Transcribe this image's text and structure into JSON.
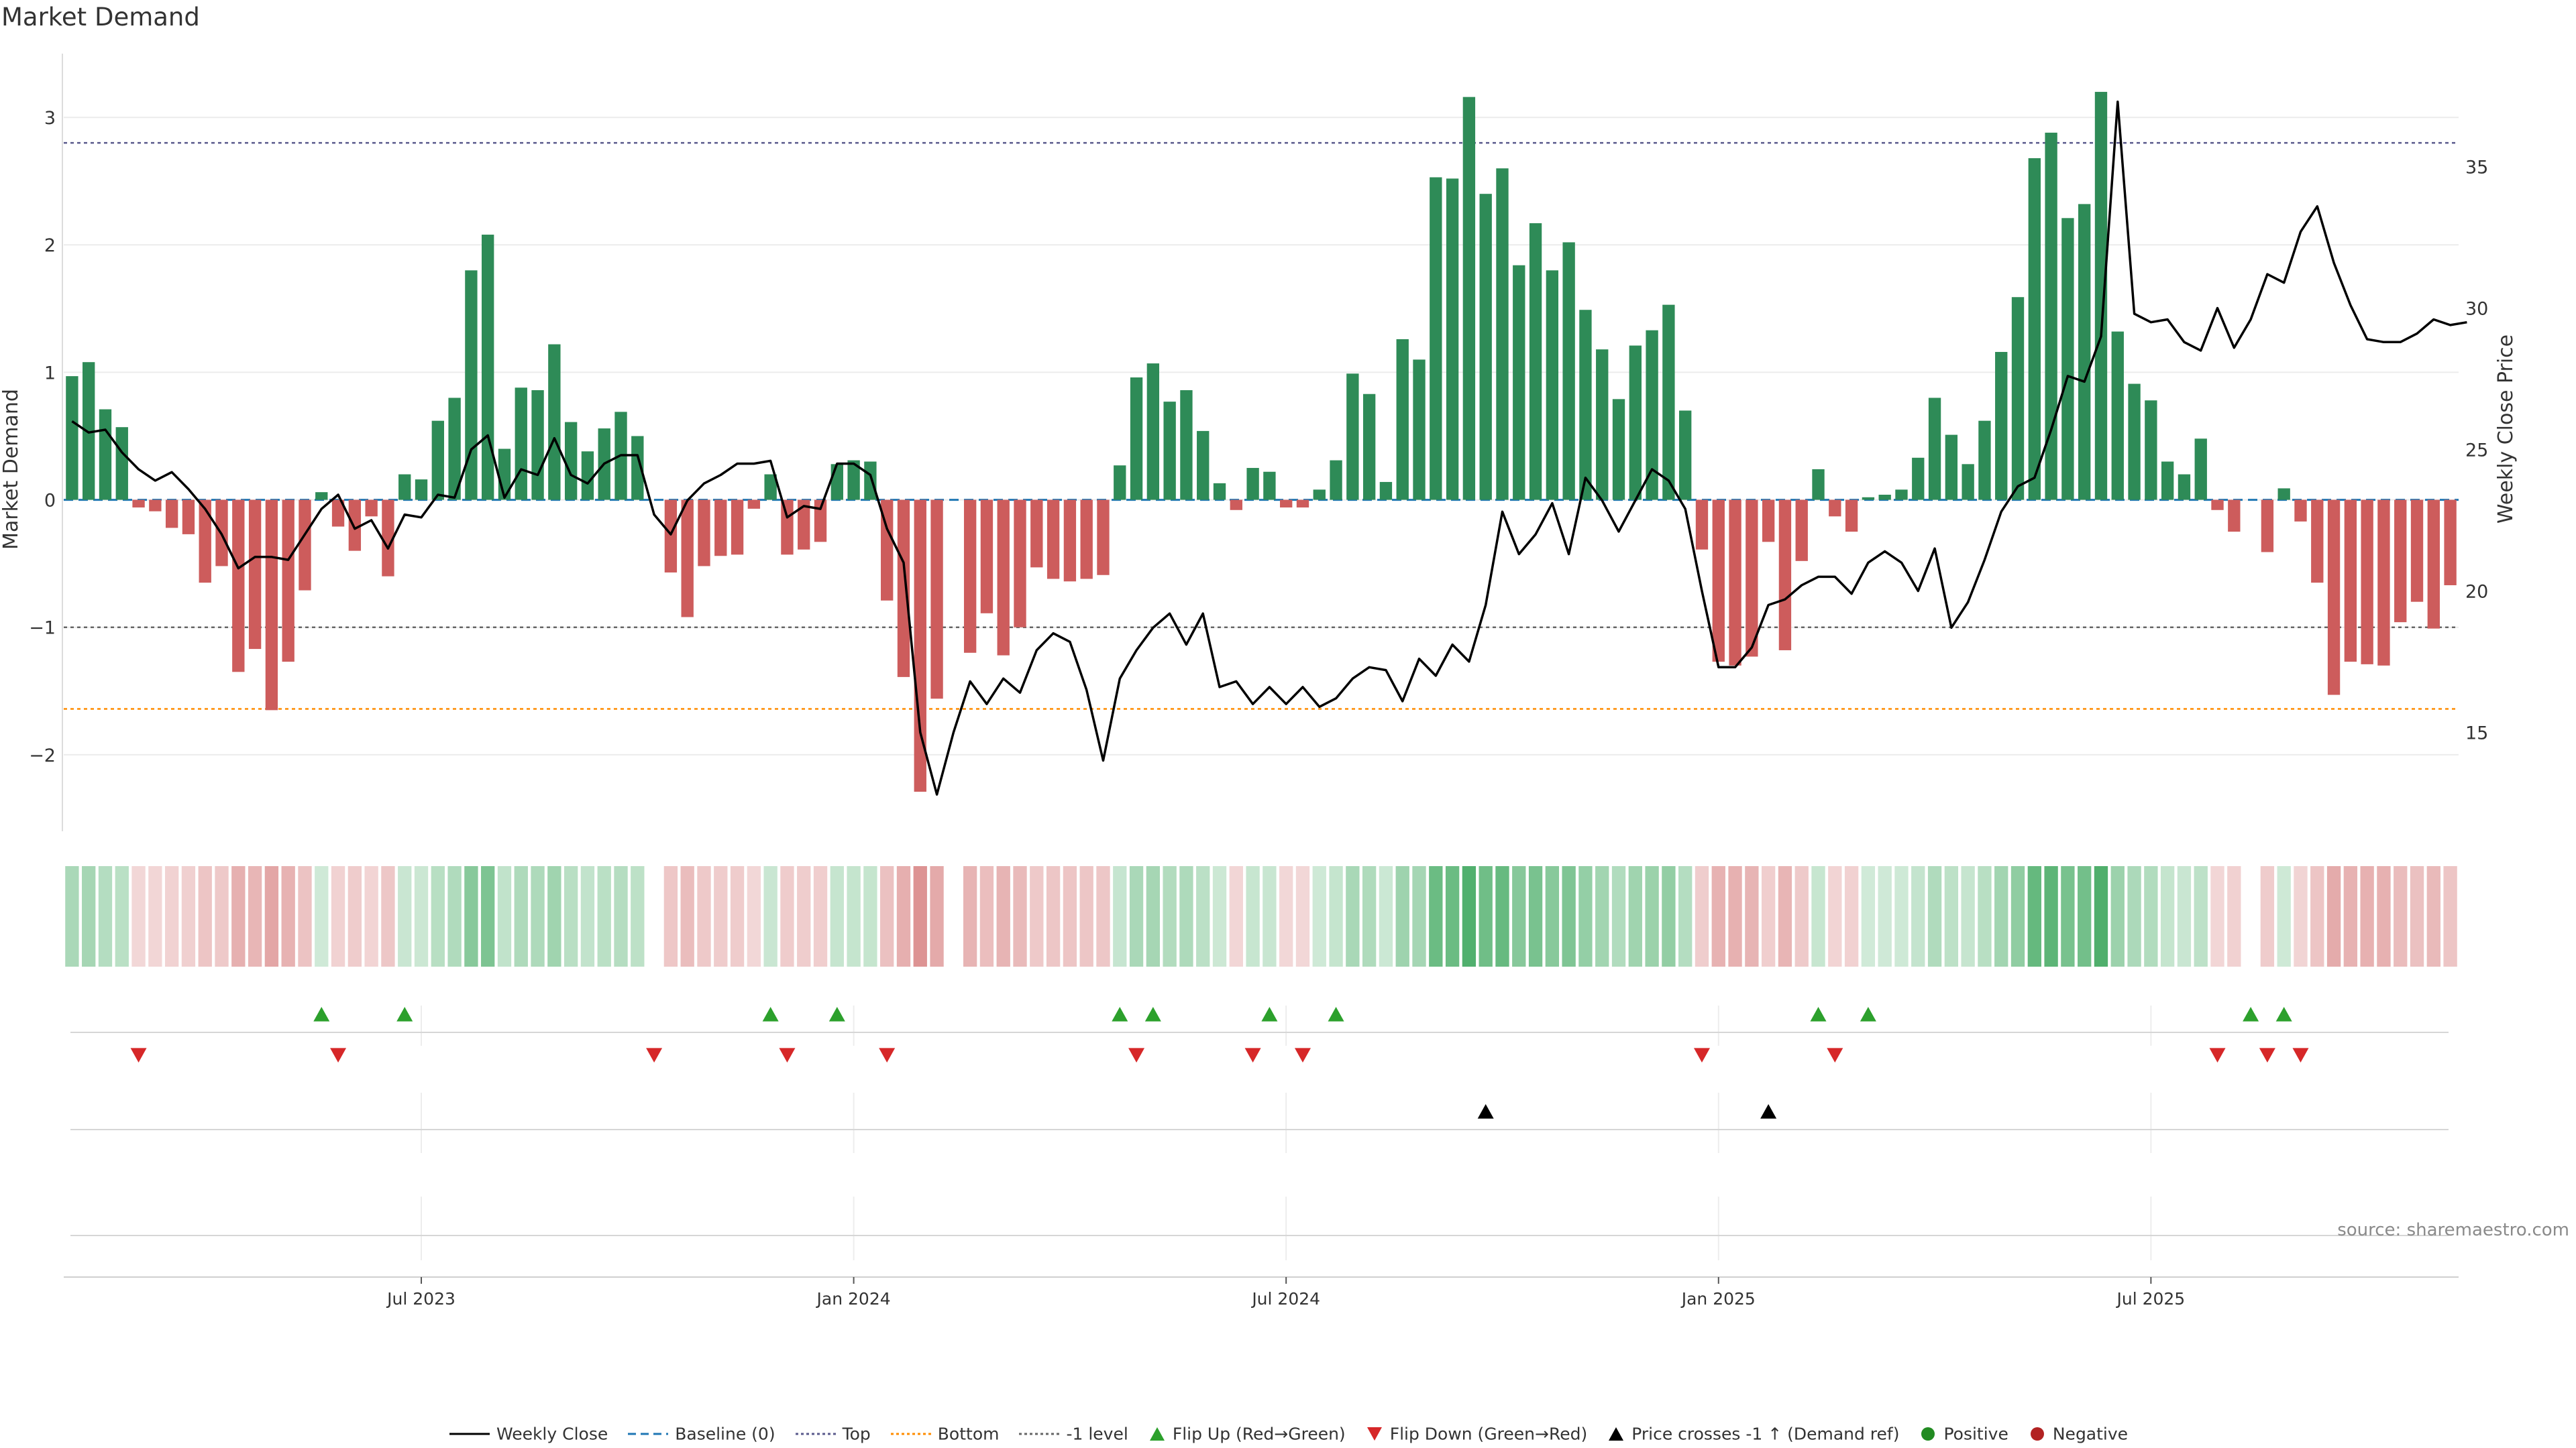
{
  "chart_data": {
    "type": "bar",
    "title": "Market Demand",
    "ylabel_left": "Market Demand",
    "ylabel_right": "Weekly Close Price",
    "ylim_left": [
      -2.6,
      3.5
    ],
    "ylim_right": [
      11.5,
      39.0
    ],
    "yticks_left": [
      -2,
      -1,
      0,
      1,
      2,
      3
    ],
    "yticks_left_labels": [
      "−2",
      "−1",
      "0",
      "1",
      "2",
      "3"
    ],
    "yticks_right": [
      15,
      20,
      25,
      30,
      35
    ],
    "reference_lines": {
      "top": 2.8,
      "bottom": -1.64,
      "minus_one": -1.0
    },
    "x_axis": {
      "start": "2023-02-07",
      "week_count": 144,
      "tick_weeks": [
        21,
        47,
        73,
        99,
        125
      ],
      "tick_labels": [
        "Jul 2023",
        "Jan 2024",
        "Jul 2024",
        "Jan 2025",
        "Jul 2025"
      ]
    },
    "demand": [
      0.97,
      1.08,
      0.71,
      0.57,
      -0.06,
      -0.09,
      -0.22,
      -0.27,
      -0.65,
      -0.52,
      -1.35,
      -1.17,
      -1.65,
      -1.27,
      -0.71,
      0.06,
      -0.21,
      -0.4,
      -0.13,
      -0.6,
      0.2,
      0.16,
      0.62,
      0.8,
      1.8,
      2.08,
      0.4,
      0.88,
      0.86,
      1.22,
      0.61,
      0.38,
      0.56,
      0.69,
      0.5,
      0.0,
      -0.57,
      -0.92,
      -0.52,
      -0.44,
      -0.43,
      -0.07,
      0.2,
      -0.43,
      -0.39,
      -0.33,
      0.28,
      0.31,
      0.3,
      -0.79,
      -1.39,
      -2.29,
      -1.56,
      0.0,
      -1.2,
      -0.89,
      -1.22,
      -1.0,
      -0.53,
      -0.62,
      -0.64,
      -0.62,
      -0.59,
      0.27,
      0.96,
      1.07,
      0.77,
      0.86,
      0.54,
      0.13,
      -0.08,
      0.25,
      0.22,
      -0.06,
      -0.06,
      0.08,
      0.31,
      0.99,
      0.83,
      0.14,
      1.26,
      1.1,
      2.53,
      2.52,
      3.16,
      2.4,
      2.6,
      1.84,
      2.17,
      1.8,
      2.02,
      1.49,
      1.18,
      0.79,
      1.21,
      1.33,
      1.53,
      0.7,
      -0.39,
      -1.27,
      -1.3,
      -1.23,
      -0.33,
      -1.18,
      -0.48,
      0.24,
      -0.13,
      -0.25,
      0.02,
      0.04,
      0.08,
      0.33,
      0.8,
      0.51,
      0.28,
      0.62,
      1.16,
      1.59,
      2.68,
      2.88,
      2.21,
      2.32,
      3.2,
      1.32,
      0.91,
      0.78,
      0.3,
      0.2,
      0.48,
      -0.08,
      -0.25,
      0.0,
      -0.41,
      0.09,
      -0.17,
      -0.65,
      -1.53,
      -1.27,
      -1.29,
      -1.3,
      -0.96,
      -0.8,
      -1.01,
      -0.67
    ],
    "close": [
      26.0,
      25.6,
      25.7,
      24.9,
      24.3,
      23.9,
      24.2,
      23.6,
      22.9,
      22.0,
      20.8,
      21.2,
      21.2,
      21.1,
      22.0,
      22.9,
      23.4,
      22.2,
      22.5,
      21.5,
      22.7,
      22.6,
      23.4,
      23.3,
      25.0,
      25.5,
      23.3,
      24.3,
      24.1,
      25.4,
      24.1,
      23.8,
      24.5,
      24.8,
      24.8,
      22.7,
      22.0,
      23.2,
      23.8,
      24.1,
      24.5,
      24.5,
      24.6,
      22.6,
      23.0,
      22.9,
      24.5,
      24.5,
      24.1,
      22.2,
      21.0,
      15.0,
      12.8,
      15.0,
      16.8,
      16.0,
      16.9,
      16.4,
      17.9,
      18.5,
      18.2,
      16.5,
      14.0,
      16.9,
      17.9,
      18.7,
      19.2,
      18.1,
      19.2,
      16.6,
      16.8,
      16.0,
      16.6,
      16.0,
      16.6,
      15.9,
      16.2,
      16.9,
      17.3,
      17.2,
      16.1,
      17.6,
      17.0,
      18.1,
      17.5,
      19.5,
      22.8,
      21.3,
      22.0,
      23.1,
      21.3,
      24.0,
      23.2,
      22.1,
      23.2,
      24.3,
      23.9,
      22.9,
      20.0,
      17.3,
      17.3,
      18.0,
      19.5,
      19.7,
      20.2,
      20.5,
      20.5,
      19.9,
      21.0,
      21.4,
      21.0,
      20.0,
      21.5,
      18.7,
      19.6,
      21.1,
      22.8,
      23.7,
      24.0,
      25.7,
      27.6,
      27.4,
      29.0,
      37.3,
      29.8,
      29.5,
      29.6,
      28.8,
      28.5,
      30.0,
      28.6,
      29.6,
      31.2,
      30.9,
      32.7,
      33.6,
      31.6,
      30.1,
      28.9,
      28.8,
      28.8,
      29.1,
      29.6,
      29.4,
      29.5
    ],
    "flip_up_weeks": [
      15,
      20,
      42,
      46,
      63,
      65,
      72,
      76,
      105,
      108,
      131,
      133
    ],
    "flip_down_weeks": [
      4,
      16,
      35,
      43,
      49,
      64,
      71,
      74,
      98,
      106,
      129,
      132,
      134
    ],
    "price_cross_weeks": [
      85,
      102
    ],
    "legend": [
      {
        "label": "Weekly Close",
        "icon": "solid-line"
      },
      {
        "label": "Baseline (0)",
        "icon": "dashed-line"
      },
      {
        "label": "Top",
        "icon": "dotted-line"
      },
      {
        "label": "Bottom",
        "icon": "dotted-line"
      },
      {
        "label": "-1 level",
        "icon": "dotted-line"
      },
      {
        "label": "Flip Up (Red→Green)",
        "icon": "triangle-up"
      },
      {
        "label": "Flip Down (Green→Red)",
        "icon": "triangle-down"
      },
      {
        "label": "Price crosses -1 ↑ (Demand ref)",
        "icon": "triangle-up"
      },
      {
        "label": "Positive",
        "icon": "circle"
      },
      {
        "label": "Negative",
        "icon": "circle"
      }
    ]
  },
  "source_text": "source: sharemaestro.com",
  "colors": {
    "positive_bar": "#2e8b57",
    "negative_bar": "#cd5c5c",
    "price_line": "#000000",
    "baseline": "#1f77b4",
    "top_line": "#5a5a8c",
    "bottom_line": "#ff8c00",
    "minus_one_line": "#666666",
    "flip_up": "#2ca02c",
    "flip_down": "#d62728",
    "price_cross": "#000000",
    "positive_dot": "#228b22",
    "negative_dot": "#b22222"
  }
}
